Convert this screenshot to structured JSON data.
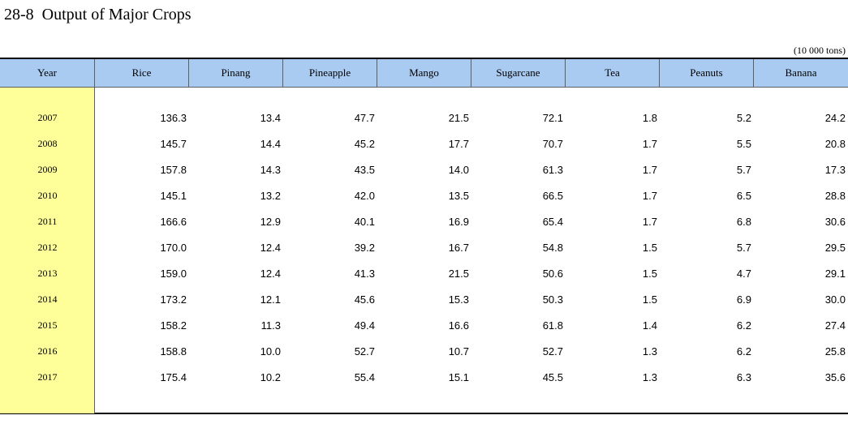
{
  "title": "28-8  Output of Major Crops",
  "unit": "(10 000 tons)",
  "headers": [
    "Year",
    "Rice",
    "Pinang",
    "Pineapple",
    "Mango",
    "Sugarcane",
    "Tea",
    "Peanuts",
    "Banana"
  ],
  "rows": [
    [
      "2007",
      "136.3",
      "13.4",
      "47.7",
      "21.5",
      "72.1",
      "1.8",
      "5.2",
      "24.2"
    ],
    [
      "2008",
      "145.7",
      "14.4",
      "45.2",
      "17.7",
      "70.7",
      "1.7",
      "5.5",
      "20.8"
    ],
    [
      "2009",
      "157.8",
      "14.3",
      "43.5",
      "14.0",
      "61.3",
      "1.7",
      "5.7",
      "17.3"
    ],
    [
      "2010",
      "145.1",
      "13.2",
      "42.0",
      "13.5",
      "66.5",
      "1.7",
      "6.5",
      "28.8"
    ],
    [
      "2011",
      "166.6",
      "12.9",
      "40.1",
      "16.9",
      "65.4",
      "1.7",
      "6.8",
      "30.6"
    ],
    [
      "2012",
      "170.0",
      "12.4",
      "39.2",
      "16.7",
      "54.8",
      "1.5",
      "5.7",
      "29.5"
    ],
    [
      "2013",
      "159.0",
      "12.4",
      "41.3",
      "21.5",
      "50.6",
      "1.5",
      "4.7",
      "29.1"
    ],
    [
      "2014",
      "173.2",
      "12.1",
      "45.6",
      "15.3",
      "50.3",
      "1.5",
      "6.9",
      "30.0"
    ],
    [
      "2015",
      "158.2",
      "11.3",
      "49.4",
      "16.6",
      "61.8",
      "1.4",
      "6.2",
      "27.4"
    ],
    [
      "2016",
      "158.8",
      "10.0",
      "52.7",
      "10.7",
      "52.7",
      "1.3",
      "6.2",
      "25.8"
    ],
    [
      "2017",
      "175.4",
      "10.2",
      "55.4",
      "15.1",
      "45.5",
      "1.3",
      "6.3",
      "35.6"
    ]
  ],
  "colors": {
    "header_bg": "#a9cbf1",
    "year_bg": "#ffff99"
  }
}
